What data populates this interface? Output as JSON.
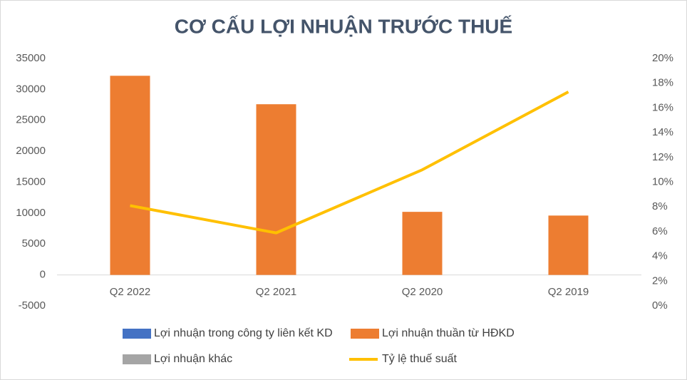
{
  "chart_data": {
    "type": "bar",
    "stacked": true,
    "title": "CƠ CẤU LỢI NHUẬN TRƯỚC THUẾ",
    "categories": [
      "Q2 2022",
      "Q2 2021",
      "Q2 2020",
      "Q2 2019"
    ],
    "series": [
      {
        "name": "Lợi nhuận trong công ty liên kết KD",
        "color": "#4472c4",
        "type": "bar",
        "values": [
          0,
          0,
          0,
          0
        ]
      },
      {
        "name": "Lợi nhuận thuần từ HĐKD",
        "color": "#ed7d31",
        "type": "bar",
        "values": [
          32200,
          27600,
          10200,
          9600
        ]
      },
      {
        "name": "Lợi nhuận khác",
        "color": "#a5a5a5",
        "type": "bar",
        "values": [
          0,
          0,
          0,
          0
        ]
      },
      {
        "name": "Tỷ lệ thuế suất",
        "color": "#ffc000",
        "type": "line",
        "axis": "y2",
        "values": [
          8.1,
          5.9,
          11.0,
          17.3
        ]
      }
    ],
    "ylim": [
      -5000,
      35000
    ],
    "yticks": [
      -5000,
      0,
      5000,
      10000,
      15000,
      20000,
      25000,
      30000,
      35000
    ],
    "y2lim": [
      0,
      20
    ],
    "y2ticks": [
      {
        "value": 0,
        "label": "0%"
      },
      {
        "value": 2,
        "label": "2%"
      },
      {
        "value": 4,
        "label": "4%"
      },
      {
        "value": 6,
        "label": "6%"
      },
      {
        "value": 8,
        "label": "8%"
      },
      {
        "value": 10,
        "label": "10%"
      },
      {
        "value": 12,
        "label": "12%"
      },
      {
        "value": 14,
        "label": "14%"
      },
      {
        "value": 16,
        "label": "16%"
      },
      {
        "value": 18,
        "label": "18%"
      },
      {
        "value": 20,
        "label": "20%"
      }
    ],
    "grid": false,
    "legend": "bottom"
  }
}
